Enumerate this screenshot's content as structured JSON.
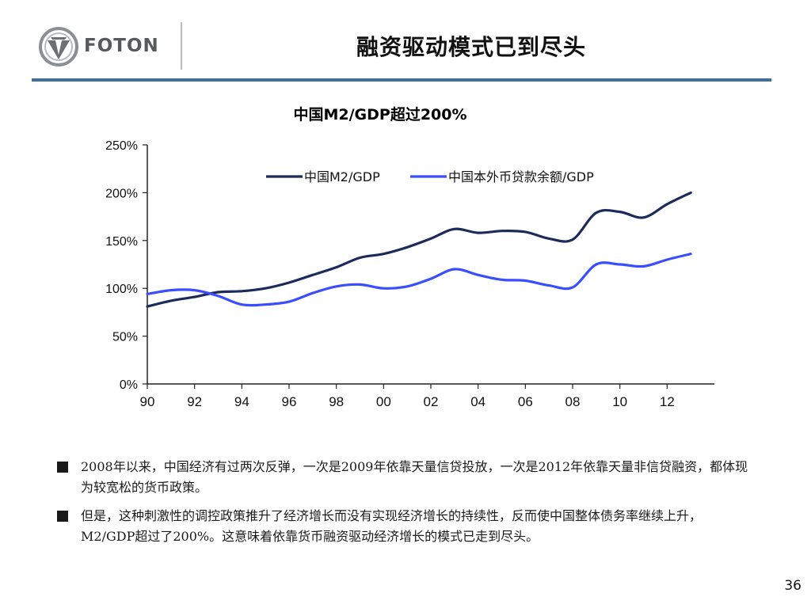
{
  "header": {
    "logo_text": "FOTON",
    "title": "融资驱动模式已到尽头"
  },
  "chart_title": "中国M2/GDP超过200%",
  "chart_data": {
    "type": "line",
    "title": "中国M2/GDP超过200%",
    "x_ticks": [
      "90",
      "92",
      "94",
      "96",
      "98",
      "00",
      "02",
      "04",
      "06",
      "08",
      "10",
      "12"
    ],
    "y_ticks": [
      "250%",
      "200%",
      "150%",
      "100%",
      "50%",
      "0%"
    ],
    "ylim": [
      0,
      250
    ],
    "xlim": [
      1990,
      2014
    ],
    "legend_placement": "top",
    "series": [
      {
        "name": "中国M2/GDP",
        "color": "#1c2b5a",
        "points": [
          [
            1990,
            81
          ],
          [
            1991,
            87
          ],
          [
            1992,
            91
          ],
          [
            1993,
            96
          ],
          [
            1994,
            97
          ],
          [
            1995,
            100
          ],
          [
            1996,
            106
          ],
          [
            1997,
            114
          ],
          [
            1998,
            122
          ],
          [
            1999,
            132
          ],
          [
            2000,
            136
          ],
          [
            2001,
            143
          ],
          [
            2002,
            152
          ],
          [
            2003,
            162
          ],
          [
            2004,
            158
          ],
          [
            2005,
            160
          ],
          [
            2006,
            159
          ],
          [
            2007,
            152
          ],
          [
            2008,
            151
          ],
          [
            2009,
            179
          ],
          [
            2010,
            180
          ],
          [
            2011,
            174
          ],
          [
            2012,
            188
          ],
          [
            2013,
            200
          ]
        ]
      },
      {
        "name": "中国本外币贷款余额/GDP",
        "color": "#3a4dff",
        "points": [
          [
            1990,
            94
          ],
          [
            1991,
            98
          ],
          [
            1992,
            98
          ],
          [
            1993,
            92
          ],
          [
            1994,
            83
          ],
          [
            1995,
            83
          ],
          [
            1996,
            86
          ],
          [
            1997,
            95
          ],
          [
            1998,
            102
          ],
          [
            1999,
            104
          ],
          [
            2000,
            100
          ],
          [
            2001,
            102
          ],
          [
            2002,
            110
          ],
          [
            2003,
            120
          ],
          [
            2004,
            114
          ],
          [
            2005,
            109
          ],
          [
            2006,
            108
          ],
          [
            2007,
            103
          ],
          [
            2008,
            101
          ],
          [
            2009,
            125
          ],
          [
            2010,
            125
          ],
          [
            2011,
            123
          ],
          [
            2012,
            130
          ],
          [
            2013,
            136
          ]
        ]
      }
    ]
  },
  "bullets": [
    "2008年以来，中国经济有过两次反弹，一次是2009年依靠天量信贷投放，一次是2012年依靠天量非信贷融资，都体现为较宽松的货币政策。",
    "但是，这种刺激性的调控政策推升了经济增长而没有实现经济增长的持续性，反而使中国整体债务率继续上升，M2/GDP超过了200%。这意味着依靠货币融资驱动经济增长的模式已走到尽头。"
  ],
  "page_number": "36",
  "colors": {
    "header_rule": "#3f6fa0",
    "m2_line": "#1c2b5a",
    "loan_line": "#3a4dff"
  }
}
